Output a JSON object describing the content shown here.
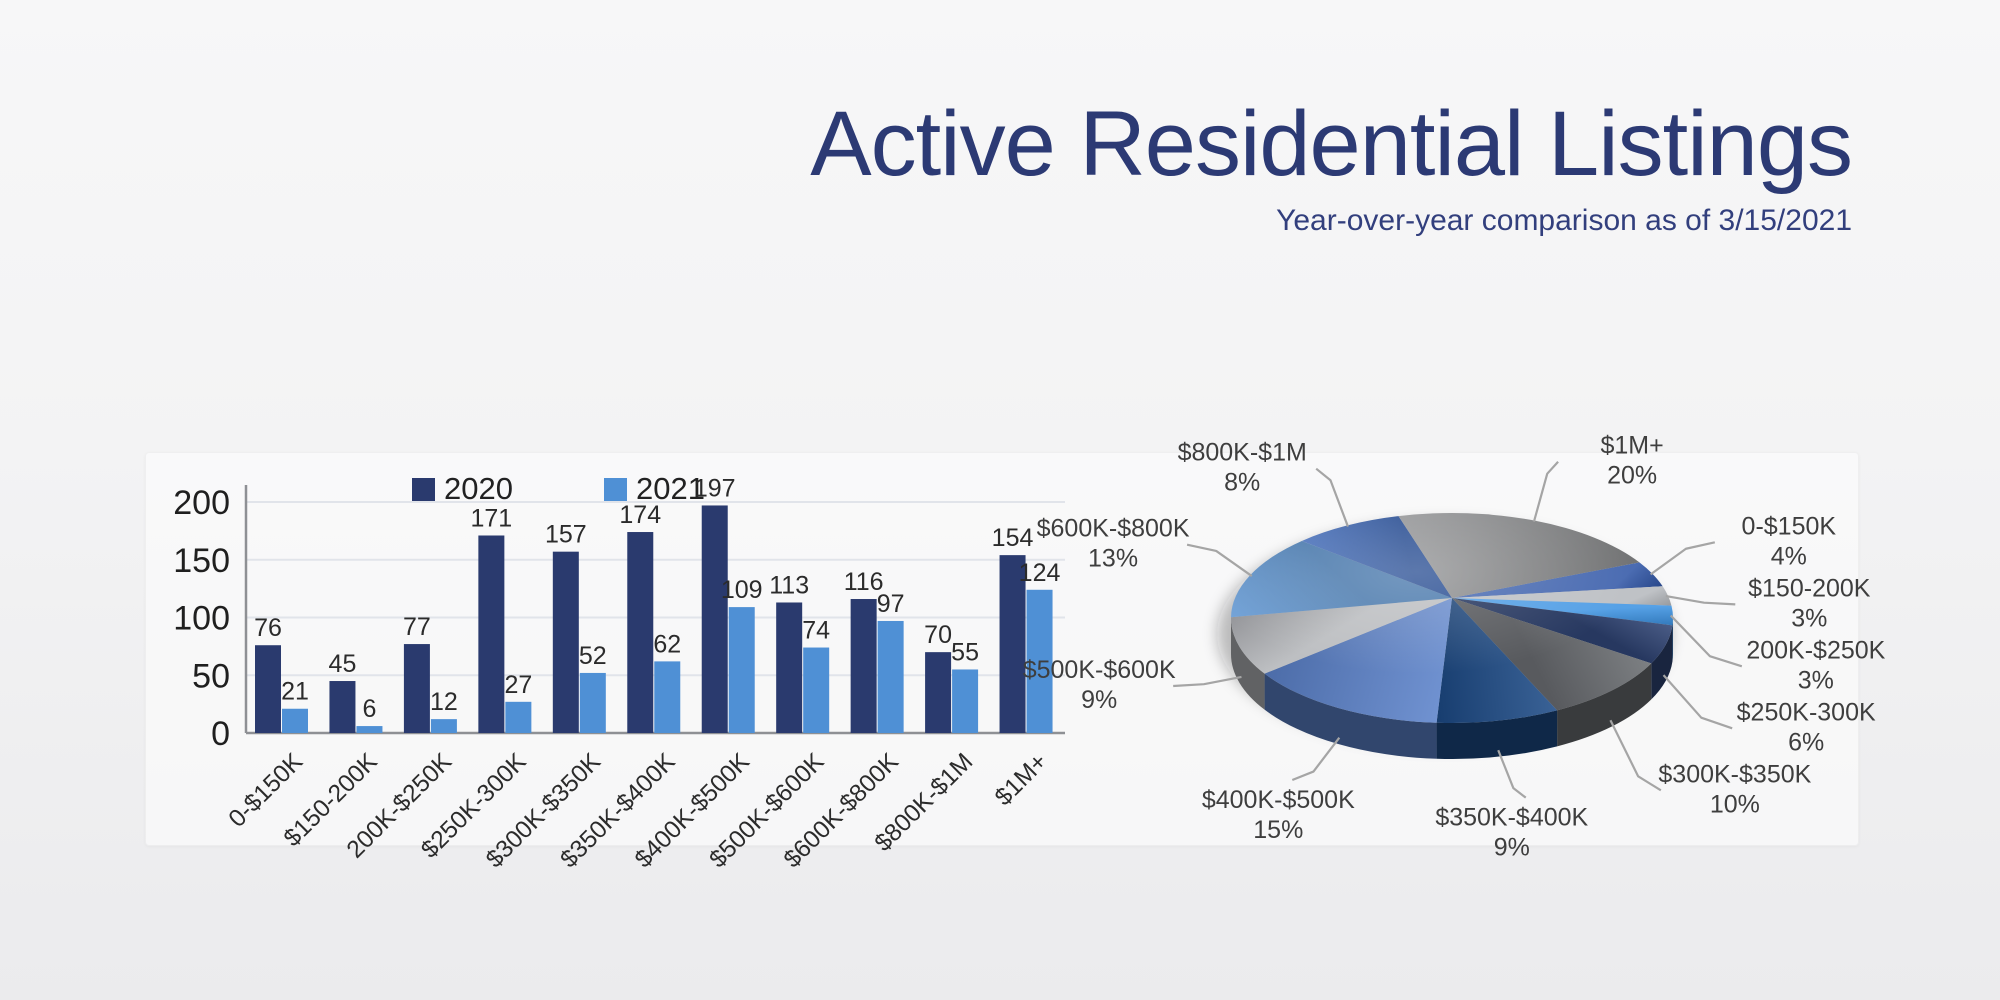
{
  "header": {
    "title": "Active Residential Listings",
    "subtitle": "Year-over-year comparison as of 3/15/2021",
    "title_color": "#2c3a74"
  },
  "chart_data": [
    {
      "type": "bar",
      "name": "listings-by-price-bar",
      "categories": [
        "0-$150K",
        "$150-200K",
        "200K-$250K",
        "$250K-300K",
        "$300K-$350K",
        "$350K-$400K",
        "$400K-$500K",
        "$500K-$600K",
        "$600K-$800K",
        "$800K-$1M",
        "$1M+"
      ],
      "series": [
        {
          "name": "2020",
          "color": "#2a3a6e",
          "values": [
            76,
            45,
            77,
            171,
            157,
            174,
            197,
            113,
            116,
            70,
            154
          ]
        },
        {
          "name": "2021",
          "color": "#4f90d5",
          "values": [
            21,
            6,
            12,
            27,
            52,
            62,
            109,
            74,
            97,
            55,
            124
          ]
        }
      ],
      "ylim": [
        0,
        200
      ],
      "yticks": [
        0,
        50,
        100,
        150,
        200
      ],
      "grid": true,
      "value_labels": true,
      "legend_position": "top-left"
    },
    {
      "type": "pie",
      "name": "listings-share-pie",
      "style": "3d",
      "start_angle_deg": 58,
      "labels": [
        "0-$150K",
        "$150-200K",
        "200K-$250K",
        "$250K-300K",
        "$300K-$350K",
        "$350K-$400K",
        "$400K-$500K",
        "$500K-$600K",
        "$600K-$800K",
        "$800K-$1M",
        "$1M+"
      ],
      "values": [
        4,
        3,
        3,
        6,
        10,
        9,
        15,
        9,
        13,
        8,
        20
      ],
      "percent_labels": [
        "4%",
        "3%",
        "3%",
        "6%",
        "10%",
        "9%",
        "15%",
        "9%",
        "13%",
        "8%",
        "20%"
      ],
      "colors": [
        "#3056a6",
        "#b6b9be",
        "#3d93e2",
        "#2f4474",
        "#6a6d71",
        "#1c4a86",
        "#5b82ca",
        "#b3b5b9",
        "#5e95d2",
        "#3763b4",
        "#898a8c"
      ]
    }
  ]
}
